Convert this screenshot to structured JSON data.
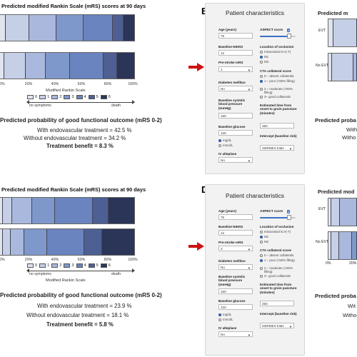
{
  "colors": {
    "mrs0": "#dfe4ee",
    "mrs1": "#c5cfe6",
    "mrs2": "#a9b8dc",
    "mrs3": "#7f98cb",
    "mrs4": "#6a84bf",
    "mrs5": "#4d5f93",
    "mrs6": "#2b3557",
    "red_arrow": "#cc1111"
  },
  "legend": {
    "title": "Modified Rankin Scale",
    "items": [
      "0",
      "1",
      "2",
      "3",
      "4",
      "5",
      "6"
    ],
    "left_label": "no symptoms",
    "right_label": "death"
  },
  "axis_ticks": [
    "0%",
    "20%",
    "40%",
    "60%",
    "80%",
    "100%"
  ],
  "panel_A": {
    "title": "Predicted modified Rankin Scale (mRS) scores at 90 days",
    "prob_title": "Predicted probability of good functional outcome (mRS 0-2)",
    "with_evt": "With endovascular treatment = 42.5 %",
    "without_evt": "Without endovascular treatment = 34.2 %",
    "benefit": "Treatment benefit = 8.3 %"
  },
  "panel_C": {
    "title": "Predicted modified Rankin Scale (mRS) scores at 90 days",
    "prob_title": "Predicted probability of good functional outcome (mRS 0-2)",
    "with_evt": "With endovascular treatment = 23.9 %",
    "without_evt": "Without endovascular treatment = 18.1 %",
    "benefit": "Treatment benefit = 5.8 %"
  },
  "chart_data": [
    {
      "type": "bar",
      "orientation": "horizontal-stacked",
      "panel": "A",
      "categories": [
        "",
        ""
      ],
      "series": [
        {
          "name": "0",
          "values": [
            4,
            3
          ]
        },
        {
          "name": "1",
          "values": [
            18,
            16
          ]
        },
        {
          "name": "2",
          "values": [
            20,
            15
          ]
        },
        {
          "name": "3",
          "values": [
            20,
            18
          ]
        },
        {
          "name": "4",
          "values": [
            22,
            25
          ]
        },
        {
          "name": "5",
          "values": [
            8,
            10
          ]
        },
        {
          "name": "6",
          "values": [
            8,
            13
          ]
        }
      ],
      "xlim": [
        0,
        100
      ]
    },
    {
      "type": "bar",
      "orientation": "horizontal-stacked",
      "panel": "C",
      "categories": [
        "",
        ""
      ],
      "series": [
        {
          "name": "0",
          "values": [
            2,
            2
          ]
        },
        {
          "name": "1",
          "values": [
            7,
            6
          ]
        },
        {
          "name": "2",
          "values": [
            15,
            10
          ]
        },
        {
          "name": "3",
          "values": [
            17,
            17
          ]
        },
        {
          "name": "4",
          "values": [
            28,
            28
          ]
        },
        {
          "name": "5",
          "values": [
            12,
            13
          ]
        },
        {
          "name": "6",
          "values": [
            19,
            24
          ]
        }
      ],
      "xlim": [
        0,
        100
      ]
    }
  ],
  "panel_B": {
    "letter": "B",
    "title": "Patient characteristics",
    "age_label": "Age (years)",
    "age_value": "75",
    "nihss_label": "Baseline NIHSS",
    "nihss_value": "12",
    "prestroke_label": "Pre-stroke mRS",
    "prestroke_value": "1",
    "diabetes_label": "Diabetes mellitus",
    "diabetes_value": "No",
    "sbp_label": "Baseline systolic blood pressure (mmHg)",
    "sbp_value": "150",
    "glucose_label": "Baseline glucose",
    "glucose_value": "120",
    "glucose_unit1": "mg/dL",
    "glucose_unit2": "mmol/L",
    "iv_label": "IV alteplase",
    "iv_value": "No",
    "aspect_label": "ASPECT score",
    "aspect_value": "8",
    "aspect_min": "0",
    "aspect_max": "10",
    "occlusion_label": "Location of occlusion",
    "occlusion_opt1": "Intracranial ICA(-T)",
    "occlusion_opt2": "M1",
    "occlusion_opt3": "M2",
    "cta_label": "CTA collateral score",
    "cta_opt1": "0 – absent collaterals",
    "cta_opt2": "1 – poor (<50% filling)",
    "cta_opt3": "2 – moderate (>50% filling)",
    "cta_opt4": "3– good collaterals",
    "time_label": "Estimated time from onset to groin puncture (minutes)",
    "time_value": "250",
    "intercept_label": "Intercept (baseline risk)",
    "intercept_value": "HERMES trials"
  },
  "panel_D": {
    "letter": "D",
    "title": "Patient characteristics",
    "age_label": "Age (years)",
    "age_value": "75",
    "nihss_label": "Baseline NIHSS",
    "nihss_value": "12",
    "prestroke_label": "Pre-stroke mRS",
    "prestroke_value": "3",
    "diabetes_label": "Diabetes mellitus",
    "diabetes_value": "No",
    "sbp_label": "Baseline systolic blood pressure (mmHg)",
    "sbp_value": "150",
    "glucose_label": "Baseline glucose",
    "glucose_value": "120",
    "glucose_unit1": "mg/dL",
    "glucose_unit2": "mmol/L",
    "iv_label": "IV alteplase",
    "iv_value": "No",
    "aspect_label": "ASPECT score",
    "aspect_value": "8",
    "aspect_min": "0",
    "aspect_max": "10",
    "occlusion_label": "Location of occlusion",
    "occlusion_opt1": "Intracranial ICA(-T)",
    "occlusion_opt2": "M1",
    "occlusion_opt3": "M2",
    "cta_label": "CTA collateral score",
    "cta_opt1": "0 – absent collaterals",
    "cta_opt2": "1 – poor (<50% filling)",
    "cta_opt3": "2 – moderate (>50% filling)",
    "cta_opt4": "3– good collaterals",
    "time_label": "Estimated time from onset to groin puncture (minutes)",
    "time_value": "250",
    "intercept_label": "Intercept (baseline risk)",
    "intercept_value": "HERMES trials"
  },
  "right_B": {
    "title": "Predicted m",
    "evt_label": "EVT",
    "noevt_label": "No EVT",
    "prob_title": "Predicted proba",
    "with_text": "With",
    "without_text": "Witho"
  },
  "right_D": {
    "title": "Predicted mod",
    "evt_label": "EVT",
    "noevt_label": "No EVT",
    "tick0": "0%",
    "tick20": "20%",
    "prob_title": "Predicted proba",
    "with_text": "Wit",
    "without_text": "Witho"
  }
}
